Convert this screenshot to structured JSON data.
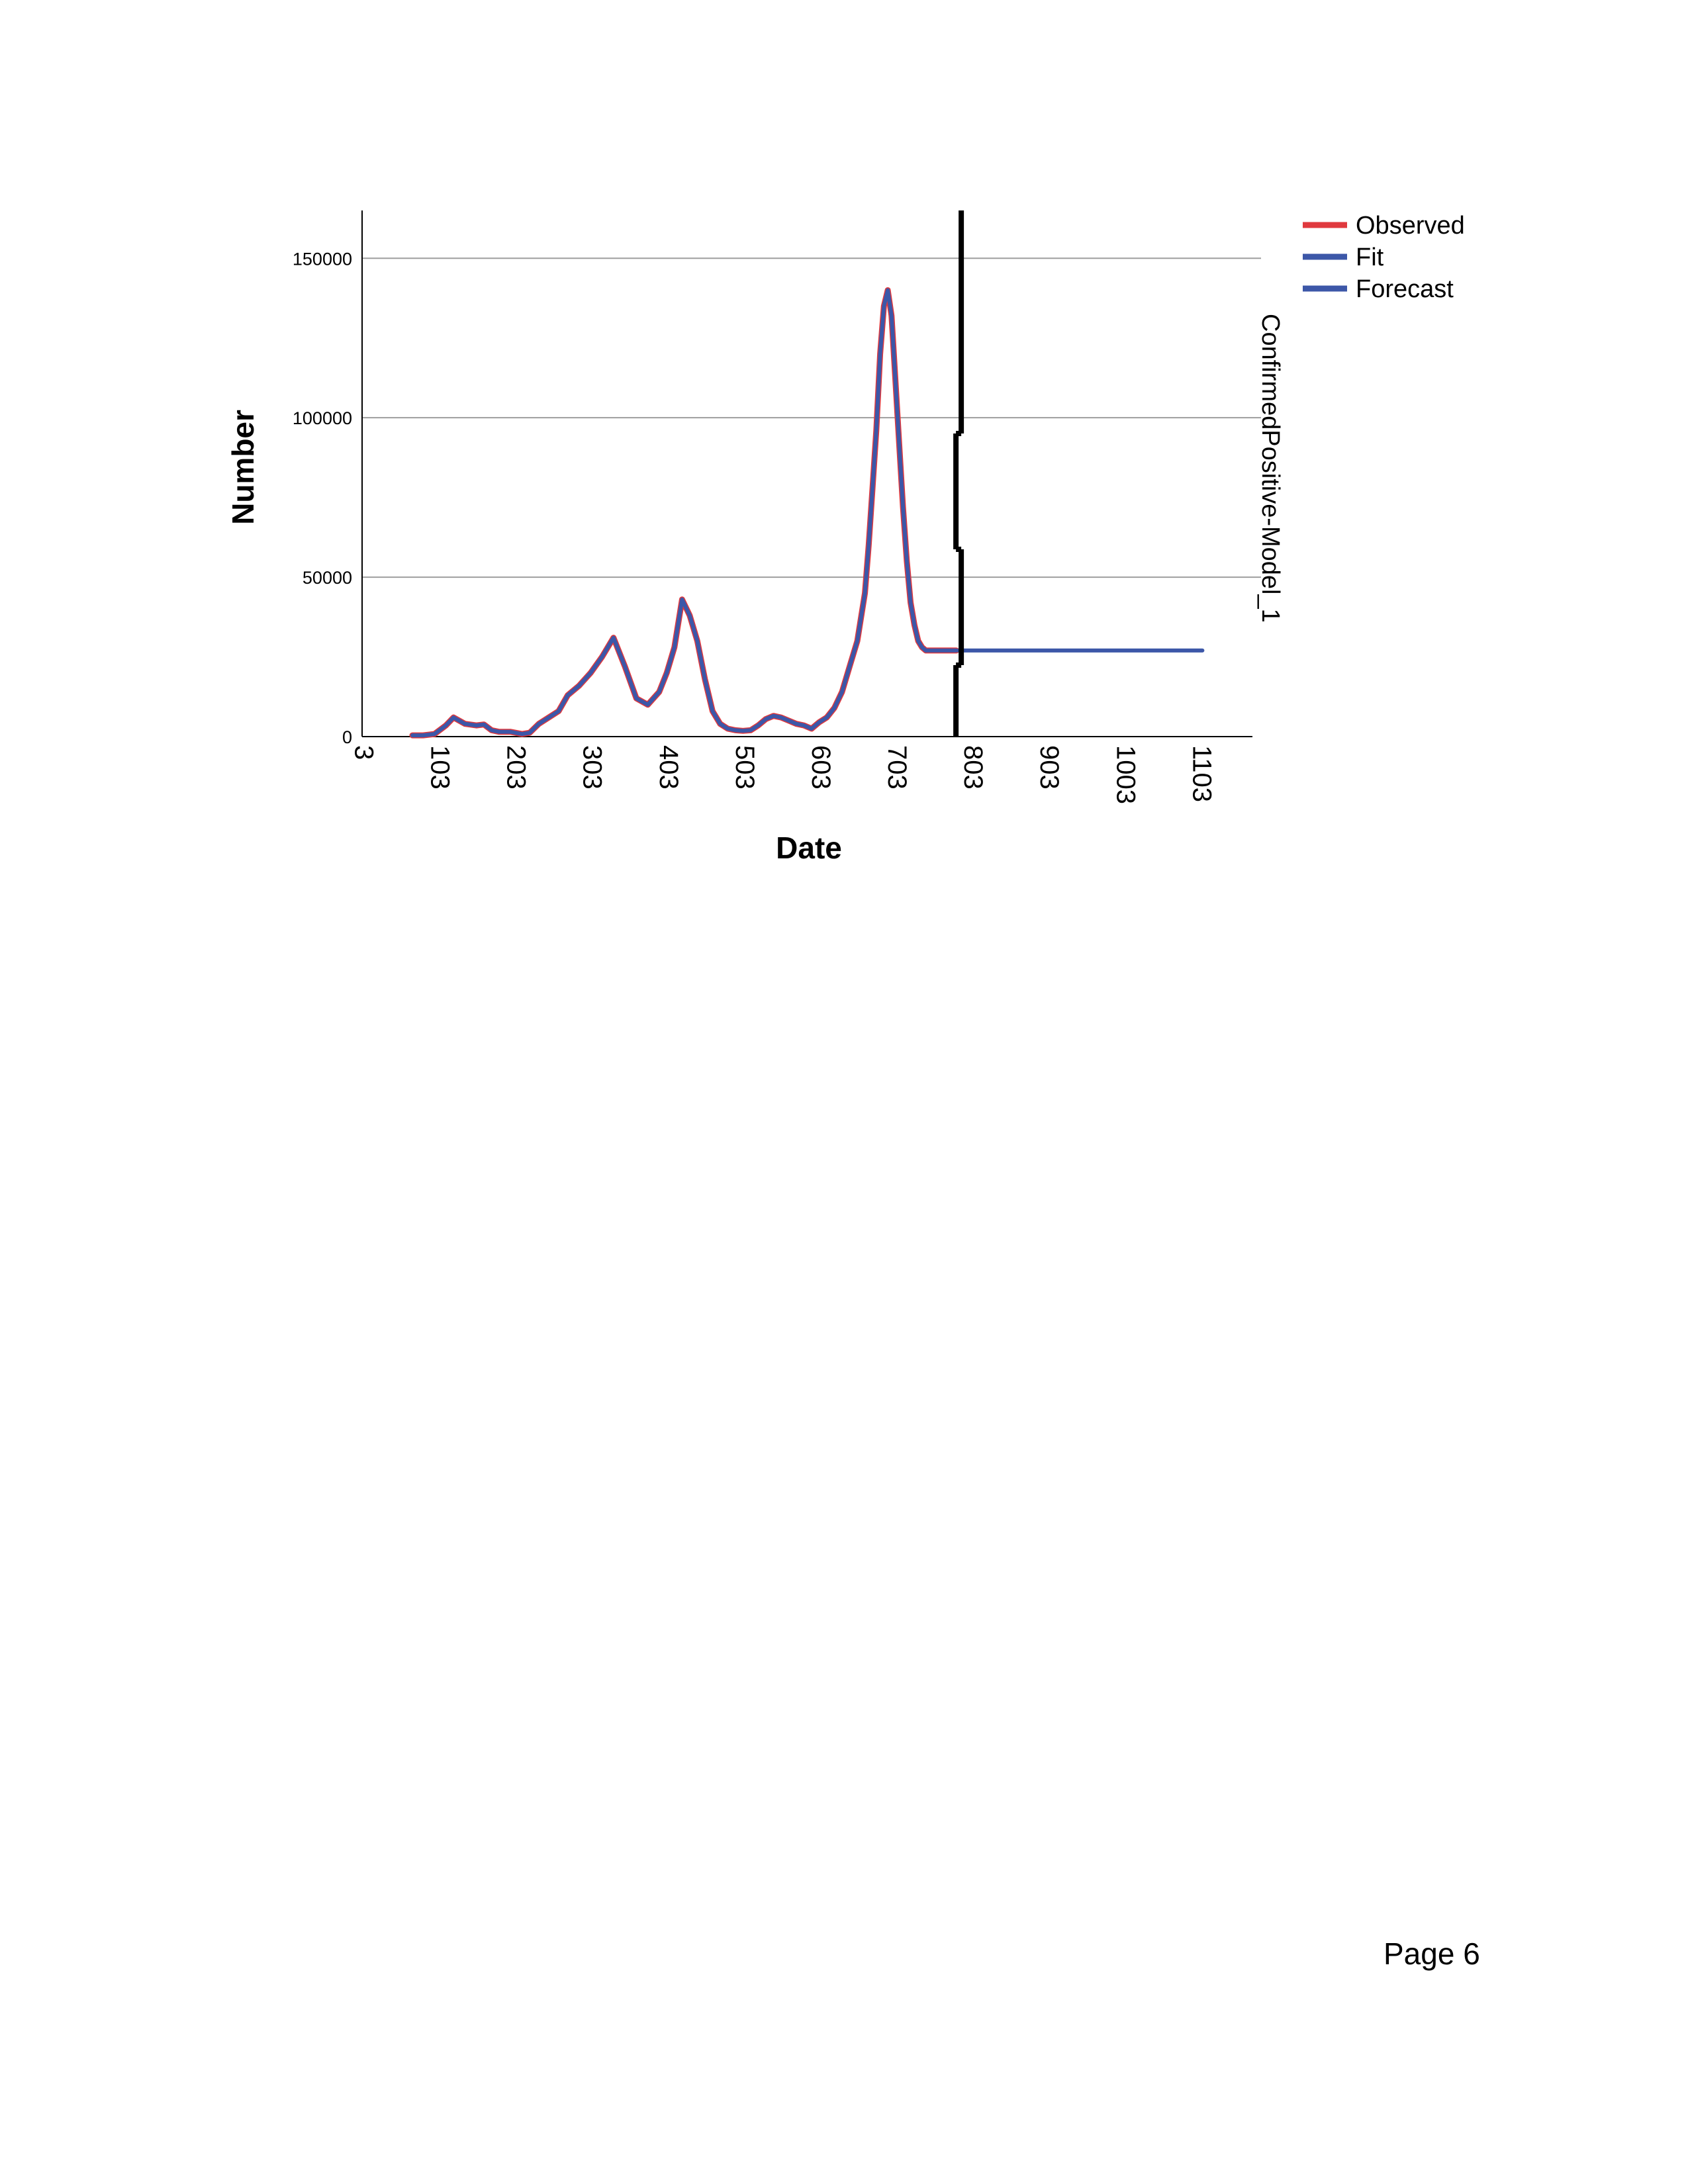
{
  "chart_data": {
    "type": "line",
    "xlabel": "Date",
    "ylabel": "Number",
    "ylim": [
      0,
      165000
    ],
    "xlim": [
      0,
      1180
    ],
    "y_ticks": [
      0,
      50000,
      100000,
      150000
    ],
    "x_tick_labels": [
      "3",
      "103",
      "203",
      "303",
      "403",
      "503",
      "603",
      "703",
      "803",
      "903",
      "1003",
      "1103"
    ],
    "x_tick_values": [
      3,
      103,
      203,
      303,
      403,
      503,
      603,
      703,
      803,
      903,
      1003,
      1103
    ],
    "grid": "horizontal",
    "legend_placement": "top-right",
    "forecast_boundary_x": 783,
    "series_label": "ConfirmedPositive-Model_1",
    "series": [
      {
        "name": "Observed",
        "color": "#e0393e",
        "x": [
          66,
          80,
          95,
          110,
          120,
          135,
          150,
          160,
          170,
          180,
          195,
          210,
          220,
          232,
          245,
          258,
          270,
          285,
          300,
          315,
          330,
          345,
          360,
          375,
          390,
          400,
          410,
          420,
          430,
          440,
          450,
          460,
          470,
          480,
          490,
          500,
          510,
          520,
          530,
          540,
          550,
          560,
          570,
          580,
          590,
          600,
          610,
          620,
          630,
          640,
          650,
          660,
          665,
          670,
          675,
          680,
          685,
          690,
          695,
          700,
          705,
          710,
          715,
          720,
          725,
          730,
          735,
          740,
          745,
          750,
          755,
          760,
          765,
          770,
          775,
          780
        ],
        "values": [
          400,
          400,
          800,
          3500,
          6000,
          4000,
          3500,
          3800,
          2000,
          1500,
          1500,
          800,
          1200,
          4000,
          6000,
          8000,
          13000,
          16000,
          20000,
          25000,
          31000,
          22000,
          12000,
          10000,
          14000,
          20000,
          28000,
          43000,
          38000,
          30000,
          18000,
          8000,
          4000,
          2500,
          2000,
          1800,
          2000,
          3500,
          5500,
          6500,
          6000,
          5000,
          4000,
          3500,
          2500,
          4500,
          6000,
          9000,
          14000,
          22000,
          30000,
          45000,
          60000,
          78000,
          96000,
          120000,
          135000,
          140000,
          132000,
          112000,
          92000,
          72000,
          55000,
          42000,
          35000,
          30000,
          28000,
          27000,
          27000,
          27000,
          27000,
          27000,
          27000,
          27000,
          27000,
          27000
        ]
      },
      {
        "name": "Fit",
        "color": "#3c57a8",
        "x": [
          66,
          80,
          95,
          110,
          120,
          135,
          150,
          160,
          170,
          180,
          195,
          210,
          220,
          232,
          245,
          258,
          270,
          285,
          300,
          315,
          330,
          345,
          360,
          375,
          390,
          400,
          410,
          420,
          430,
          440,
          450,
          460,
          470,
          480,
          490,
          500,
          510,
          520,
          530,
          540,
          550,
          560,
          570,
          580,
          590,
          600,
          610,
          620,
          630,
          640,
          650,
          660,
          665,
          670,
          675,
          680,
          685,
          690,
          695,
          700,
          705,
          710,
          715,
          720,
          725,
          730,
          735,
          740,
          745,
          750,
          755,
          760,
          765,
          770,
          775,
          780
        ],
        "values": [
          400,
          400,
          800,
          3500,
          6000,
          4000,
          3500,
          3800,
          2000,
          1500,
          1500,
          800,
          1200,
          4000,
          6000,
          8000,
          13000,
          16000,
          20000,
          25000,
          31000,
          22000,
          12000,
          10000,
          14000,
          20000,
          28000,
          43000,
          38000,
          30000,
          18000,
          8000,
          4000,
          2500,
          2000,
          1800,
          2000,
          3500,
          5500,
          6500,
          6000,
          5000,
          4000,
          3500,
          2500,
          4500,
          6000,
          9000,
          14000,
          22000,
          30000,
          45000,
          60000,
          78000,
          96000,
          120000,
          135000,
          140000,
          132000,
          112000,
          92000,
          72000,
          55000,
          42000,
          35000,
          30000,
          28000,
          27000,
          27000,
          27000,
          27000,
          27000,
          27000,
          27000,
          27000,
          27000
        ]
      },
      {
        "name": "Forecast",
        "color": "#3c57a8",
        "x": [
          783,
          1103
        ],
        "values": [
          27000,
          27000
        ]
      }
    ]
  },
  "page": {
    "page_number": "Page 6"
  }
}
